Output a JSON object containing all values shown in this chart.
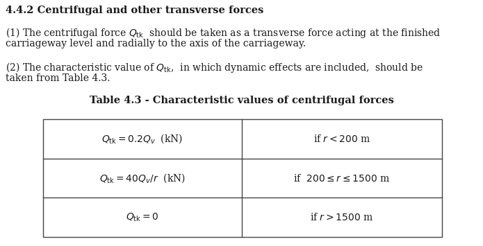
{
  "title_section": "4.4.2 Centrifugal and other transverse forces",
  "para1_line1": "(1) The centrifugal force $Q_{\\mathrm{tk}}$  should be taken as a transverse force acting at the finished",
  "para1_line2": "carriageway level and radially to the axis of the carriageway.",
  "para2_line1": "(2) The characteristic value of $Q_{\\mathrm{tk}}$,  in which dynamic effects are included,  should be",
  "para2_line2": "taken from Table 4.3.",
  "table_title": "Table 4.3 - Characteristic values of centrifugal forces",
  "row1_left": "$Q_{\\mathrm{tk}} = 0.2Q_v$  (kN)",
  "row1_right": "if $r < 200$ m",
  "row2_left": "$Q_{\\mathrm{tk}} = 40Q_v / r$  (kN)",
  "row2_right": "if  $200 \\leq r \\leq 1500$ m",
  "row3_left": "$Q_{\\mathrm{tk}} = 0$",
  "row3_right": "if $r > 1500$ m",
  "bg_color": "#ffffff",
  "text_color": "#1a1a1a",
  "heading_fontsize": 10.5,
  "body_fontsize": 10.0,
  "table_title_fontsize": 10.5,
  "table_fontsize": 10.0
}
